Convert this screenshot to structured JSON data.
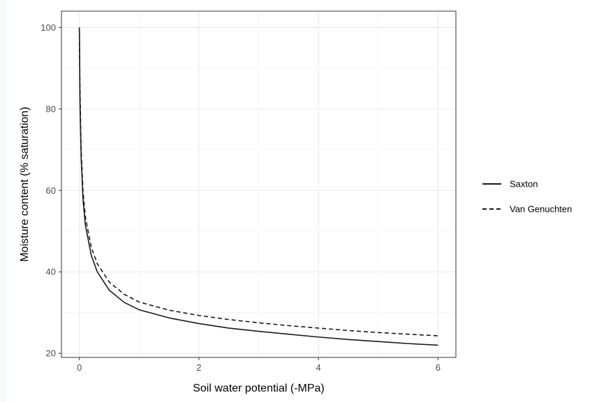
{
  "chart_data": {
    "type": "line",
    "xlabel": "Soil water potential (-MPa)",
    "ylabel": "Moisture content (% saturation)",
    "xlim": [
      -0.3,
      6.3
    ],
    "ylim": [
      19,
      104
    ],
    "x_ticks": [
      0,
      2,
      4,
      6
    ],
    "y_ticks": [
      20,
      40,
      60,
      80,
      100
    ],
    "grid": true,
    "legend_position": "right",
    "series": [
      {
        "name": "Saxton",
        "line_style": "solid",
        "color": "#1a1a1a",
        "points": [
          [
            0,
            100
          ],
          [
            0.01,
            82
          ],
          [
            0.03,
            68
          ],
          [
            0.06,
            58
          ],
          [
            0.1,
            51.5
          ],
          [
            0.2,
            44
          ],
          [
            0.3,
            40
          ],
          [
            0.5,
            35.5
          ],
          [
            0.75,
            32.5
          ],
          [
            1,
            30.7
          ],
          [
            1.5,
            28.7
          ],
          [
            2,
            27.3
          ],
          [
            2.5,
            26.2
          ],
          [
            3,
            25.4
          ],
          [
            3.5,
            24.7
          ],
          [
            4,
            24
          ],
          [
            4.5,
            23.4
          ],
          [
            5,
            22.9
          ],
          [
            5.5,
            22.4
          ],
          [
            6,
            22
          ]
        ]
      },
      {
        "name": "Van Genuchten",
        "line_style": "dashed",
        "color": "#1a1a1a",
        "points": [
          [
            0,
            100
          ],
          [
            0.01,
            85
          ],
          [
            0.03,
            70
          ],
          [
            0.06,
            60
          ],
          [
            0.1,
            53.5
          ],
          [
            0.2,
            46
          ],
          [
            0.3,
            42
          ],
          [
            0.5,
            37.5
          ],
          [
            0.75,
            34.5
          ],
          [
            1,
            32.6
          ],
          [
            1.5,
            30.6
          ],
          [
            2,
            29.3
          ],
          [
            2.5,
            28.3
          ],
          [
            3,
            27.5
          ],
          [
            3.5,
            26.8
          ],
          [
            4,
            26.2
          ],
          [
            4.5,
            25.6
          ],
          [
            5,
            25.1
          ],
          [
            5.5,
            24.7
          ],
          [
            6,
            24.3
          ]
        ]
      }
    ]
  }
}
